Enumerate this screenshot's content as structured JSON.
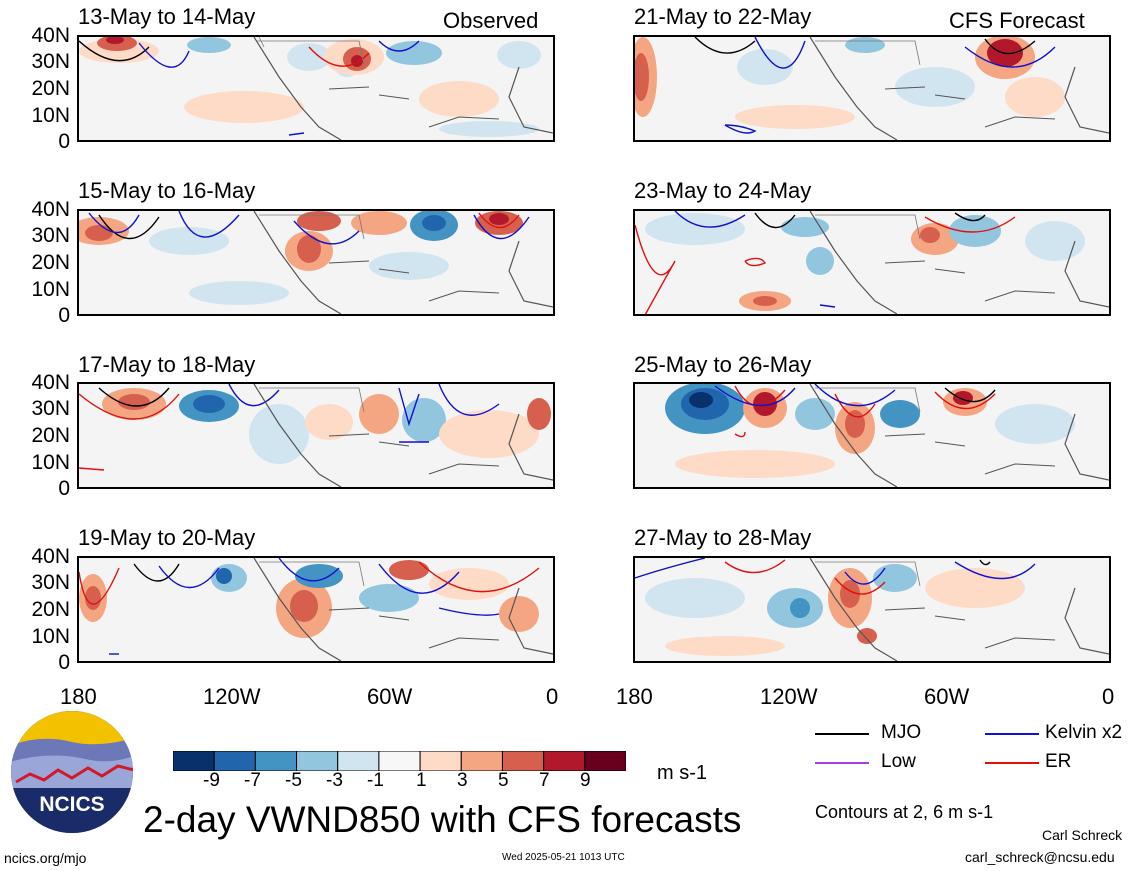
{
  "header": {
    "observed": "Observed",
    "forecast": "CFS Forecast"
  },
  "panels": {
    "observed": [
      "13-May to 14-May",
      "15-May to 16-May",
      "17-May to 18-May",
      "19-May to 20-May"
    ],
    "forecast": [
      "21-May to 22-May",
      "23-May to 24-May",
      "25-May to 26-May",
      "27-May to 28-May"
    ]
  },
  "axes": {
    "y_ticks": [
      "40N",
      "30N",
      "20N",
      "10N",
      "0"
    ],
    "x_ticks": [
      "180",
      "120W",
      "60W",
      "0"
    ]
  },
  "colorbar": {
    "labels": [
      "-9",
      "-7",
      "-5",
      "-3",
      "-1",
      "1",
      "3",
      "5",
      "7",
      "9"
    ],
    "units": "m s-1",
    "colors": [
      "#08306b",
      "#2166ac",
      "#4393c3",
      "#92c5de",
      "#d1e5f0",
      "#f7f7f7",
      "#fddbc7",
      "#f4a582",
      "#d6604d",
      "#b2182b",
      "#67001f"
    ]
  },
  "legend": {
    "items": [
      {
        "label": "MJO",
        "color": "#000000"
      },
      {
        "label": "Kelvin x2",
        "color": "#1010d0"
      },
      {
        "label": "Low",
        "color": "#a040e0"
      },
      {
        "label": "ER",
        "color": "#e01010"
      }
    ],
    "note": "Contours at 2, 6 m s-1"
  },
  "logo": {
    "text": "NCICS"
  },
  "title": "2-day VWND850 with CFS forecasts",
  "footer": {
    "left": "ncics.org/mjo",
    "center": "Wed 2025-05-21 1013 UTC",
    "credit_name": "Carl Schreck",
    "credit_email": "carl_schreck@ncsu.edu"
  }
}
